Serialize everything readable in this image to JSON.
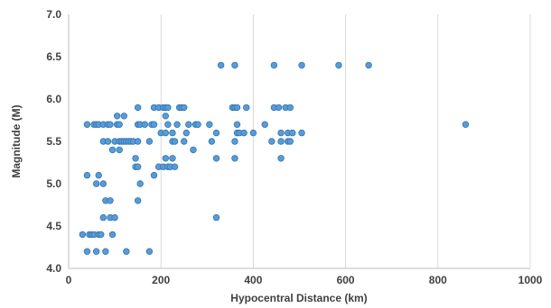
{
  "chart_data": {
    "type": "scatter",
    "xlabel": "Hypocentral Distance (km)",
    "ylabel": "Magnitude (M)",
    "xlim": [
      0,
      1000
    ],
    "ylim": [
      4.0,
      7.0
    ],
    "xticks": [
      "0",
      "200",
      "400",
      "600",
      "800",
      "1000"
    ],
    "yticks": [
      "4.0",
      "4.5",
      "5.0",
      "5.5",
      "6.0",
      "6.5",
      "7.0"
    ],
    "grid": "vertical",
    "legend": "none",
    "marker_color": "#5b9bd5",
    "marker_edge_color": "#2e75b6",
    "series": [
      {
        "points": [
          [
            30,
            4.4
          ],
          [
            40,
            4.2
          ],
          [
            45,
            4.4
          ],
          [
            50,
            4.4
          ],
          [
            55,
            4.4
          ],
          [
            60,
            4.2
          ],
          [
            65,
            4.4
          ],
          [
            70,
            4.4
          ],
          [
            80,
            4.2
          ],
          [
            95,
            4.4
          ],
          [
            125,
            4.2
          ],
          [
            175,
            4.2
          ],
          [
            75,
            4.6
          ],
          [
            90,
            4.6
          ],
          [
            100,
            4.6
          ],
          [
            320,
            4.6
          ],
          [
            80,
            4.8
          ],
          [
            90,
            4.8
          ],
          [
            150,
            4.8
          ],
          [
            60,
            5.0
          ],
          [
            75,
            5.0
          ],
          [
            155,
            5.0
          ],
          [
            40,
            5.1
          ],
          [
            65,
            5.1
          ],
          [
            185,
            5.1
          ],
          [
            145,
            5.2
          ],
          [
            150,
            5.2
          ],
          [
            195,
            5.2
          ],
          [
            205,
            5.2
          ],
          [
            215,
            5.2
          ],
          [
            220,
            5.2
          ],
          [
            230,
            5.2
          ],
          [
            145,
            5.3
          ],
          [
            210,
            5.3
          ],
          [
            225,
            5.3
          ],
          [
            320,
            5.3
          ],
          [
            360,
            5.3
          ],
          [
            460,
            5.3
          ],
          [
            95,
            5.4
          ],
          [
            110,
            5.4
          ],
          [
            270,
            5.4
          ],
          [
            75,
            5.5
          ],
          [
            85,
            5.5
          ],
          [
            100,
            5.5
          ],
          [
            110,
            5.5
          ],
          [
            115,
            5.5
          ],
          [
            120,
            5.5
          ],
          [
            125,
            5.5
          ],
          [
            130,
            5.5
          ],
          [
            135,
            5.5
          ],
          [
            140,
            5.5
          ],
          [
            150,
            5.5
          ],
          [
            175,
            5.5
          ],
          [
            225,
            5.5
          ],
          [
            230,
            5.5
          ],
          [
            250,
            5.5
          ],
          [
            310,
            5.5
          ],
          [
            360,
            5.5
          ],
          [
            440,
            5.5
          ],
          [
            460,
            5.5
          ],
          [
            475,
            5.5
          ],
          [
            480,
            5.5
          ],
          [
            200,
            5.6
          ],
          [
            210,
            5.6
          ],
          [
            225,
            5.6
          ],
          [
            255,
            5.6
          ],
          [
            320,
            5.6
          ],
          [
            365,
            5.6
          ],
          [
            370,
            5.6
          ],
          [
            380,
            5.6
          ],
          [
            400,
            5.6
          ],
          [
            460,
            5.6
          ],
          [
            475,
            5.6
          ],
          [
            485,
            5.6
          ],
          [
            505,
            5.6
          ],
          [
            40,
            5.7
          ],
          [
            55,
            5.7
          ],
          [
            60,
            5.7
          ],
          [
            65,
            5.7
          ],
          [
            75,
            5.7
          ],
          [
            85,
            5.7
          ],
          [
            90,
            5.7
          ],
          [
            105,
            5.7
          ],
          [
            110,
            5.7
          ],
          [
            150,
            5.7
          ],
          [
            155,
            5.7
          ],
          [
            165,
            5.7
          ],
          [
            180,
            5.7
          ],
          [
            185,
            5.7
          ],
          [
            215,
            5.7
          ],
          [
            235,
            5.7
          ],
          [
            260,
            5.7
          ],
          [
            275,
            5.7
          ],
          [
            280,
            5.7
          ],
          [
            305,
            5.7
          ],
          [
            365,
            5.7
          ],
          [
            425,
            5.7
          ],
          [
            860,
            5.7
          ],
          [
            105,
            5.8
          ],
          [
            120,
            5.8
          ],
          [
            210,
            5.8
          ],
          [
            150,
            5.9
          ],
          [
            185,
            5.9
          ],
          [
            195,
            5.9
          ],
          [
            205,
            5.9
          ],
          [
            210,
            5.9
          ],
          [
            215,
            5.9
          ],
          [
            240,
            5.9
          ],
          [
            245,
            5.9
          ],
          [
            250,
            5.9
          ],
          [
            355,
            5.9
          ],
          [
            360,
            5.9
          ],
          [
            365,
            5.9
          ],
          [
            385,
            5.9
          ],
          [
            445,
            5.9
          ],
          [
            455,
            5.9
          ],
          [
            470,
            5.9
          ],
          [
            480,
            5.9
          ],
          [
            330,
            6.4
          ],
          [
            360,
            6.4
          ],
          [
            445,
            6.4
          ],
          [
            505,
            6.4
          ],
          [
            585,
            6.4
          ],
          [
            650,
            6.4
          ]
        ]
      }
    ]
  }
}
